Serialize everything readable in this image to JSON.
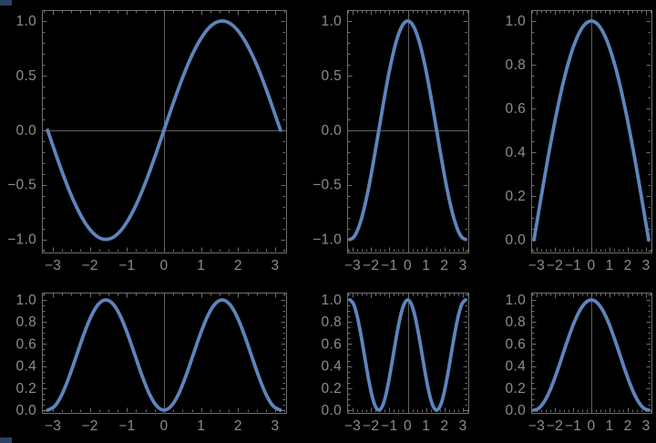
{
  "colors": {
    "background": "#000000",
    "curve": "#5e84bb",
    "frame": "#6e6e6e",
    "origin_line": "#5f5f5f",
    "tick_label": "#8d8d8d",
    "corner_artifact": "#2c4166"
  },
  "x_samples": [
    -3.142,
    -2.945,
    -2.749,
    -2.553,
    -2.356,
    -2.16,
    -1.963,
    -1.767,
    -1.571,
    -1.374,
    -1.178,
    -0.982,
    -0.785,
    -0.589,
    -0.393,
    -0.196,
    0,
    0.196,
    0.393,
    0.589,
    0.785,
    0.982,
    1.178,
    1.374,
    1.571,
    1.767,
    1.963,
    2.16,
    2.356,
    2.553,
    2.749,
    2.945,
    3.142
  ],
  "chart_data": [
    {
      "id": "sin",
      "type": "line",
      "function": "sin(x)",
      "title": "",
      "xlabel": "",
      "ylabel": "",
      "xlim": [
        -3.295,
        3.295
      ],
      "ylim": [
        -1.12,
        1.1
      ],
      "xticks": [
        -3,
        -2,
        -1,
        0,
        1,
        2,
        3
      ],
      "xtick_labels": [
        "−3",
        "−2",
        "−1",
        "0",
        "1",
        "2",
        "3"
      ],
      "yticks": [
        -1.0,
        -0.5,
        0.0,
        0.5,
        1.0
      ],
      "ytick_labels": [
        "−1.0",
        "−0.5",
        "0.0",
        "0.5",
        "1.0"
      ],
      "x_minor_step": 0.25,
      "y_minor_step": 0.1,
      "grid": false,
      "origin_vline": true,
      "origin_hline": true,
      "y": [
        0,
        -0.195,
        -0.383,
        -0.556,
        -0.707,
        -0.831,
        -0.924,
        -0.981,
        -1,
        -0.981,
        -0.924,
        -0.831,
        -0.707,
        -0.556,
        -0.383,
        -0.195,
        0,
        0.195,
        0.383,
        0.556,
        0.707,
        0.831,
        0.924,
        0.981,
        1,
        0.981,
        0.924,
        0.831,
        0.707,
        0.556,
        0.383,
        0.195,
        0
      ]
    },
    {
      "id": "cos",
      "type": "line",
      "function": "cos(x)",
      "title": "",
      "xlabel": "",
      "ylabel": "",
      "xlim": [
        -3.295,
        3.295
      ],
      "ylim": [
        -1.12,
        1.1
      ],
      "xticks": [
        -3,
        -2,
        -1,
        0,
        1,
        2,
        3
      ],
      "xtick_labels": [
        "−3",
        "−2",
        "−1",
        "0",
        "1",
        "2",
        "3"
      ],
      "yticks": [
        -1.0,
        -0.5,
        0.0,
        0.5,
        1.0
      ],
      "ytick_labels": [
        "−1.0",
        "−0.5",
        "0.0",
        "0.5",
        "1.0"
      ],
      "x_minor_step": 0.25,
      "y_minor_step": 0.1,
      "grid": false,
      "origin_vline": true,
      "origin_hline": true,
      "y": [
        -1,
        -0.981,
        -0.924,
        -0.831,
        -0.707,
        -0.556,
        -0.383,
        -0.195,
        0,
        0.195,
        0.383,
        0.556,
        0.707,
        0.831,
        0.924,
        0.981,
        1,
        0.981,
        0.924,
        0.831,
        0.707,
        0.556,
        0.383,
        0.195,
        0,
        -0.195,
        -0.383,
        -0.556,
        -0.707,
        -0.831,
        -0.924,
        -0.981,
        -1
      ]
    },
    {
      "id": "cos-half",
      "type": "line",
      "function": "cos(x/2)",
      "title": "",
      "xlabel": "",
      "ylabel": "",
      "xlim": [
        -3.295,
        3.295
      ],
      "ylim": [
        -0.058,
        1.05
      ],
      "xticks": [
        -3,
        -2,
        -1,
        0,
        1,
        2,
        3
      ],
      "xtick_labels": [
        "−3",
        "−2",
        "−1",
        "0",
        "1",
        "2",
        "3"
      ],
      "yticks": [
        0.0,
        0.2,
        0.4,
        0.6,
        0.8,
        1.0
      ],
      "ytick_labels": [
        "0.0",
        "0.2",
        "0.4",
        "0.6",
        "0.8",
        "1.0"
      ],
      "x_minor_step": 0.25,
      "y_minor_step": 0.05,
      "grid": false,
      "origin_vline": true,
      "origin_hline": false,
      "y": [
        0,
        0.098,
        0.195,
        0.29,
        0.383,
        0.471,
        0.556,
        0.634,
        0.707,
        0.773,
        0.831,
        0.882,
        0.924,
        0.957,
        0.981,
        0.995,
        1,
        0.995,
        0.981,
        0.957,
        0.924,
        0.882,
        0.831,
        0.773,
        0.707,
        0.634,
        0.556,
        0.471,
        0.383,
        0.29,
        0.195,
        0.098,
        0
      ]
    },
    {
      "id": "sin-squared",
      "type": "line",
      "function": "sin(x)^2",
      "title": "",
      "xlabel": "",
      "ylabel": "",
      "xlim": [
        -3.295,
        3.295
      ],
      "ylim": [
        -0.025,
        1.066
      ],
      "xticks": [
        -3,
        -2,
        -1,
        0,
        1,
        2,
        3
      ],
      "xtick_labels": [
        "−3",
        "−2",
        "−1",
        "0",
        "1",
        "2",
        "3"
      ],
      "yticks": [
        0.0,
        0.2,
        0.4,
        0.6,
        0.8,
        1.0
      ],
      "ytick_labels": [
        "0.0",
        "0.2",
        "0.4",
        "0.6",
        "0.8",
        "1.0"
      ],
      "x_minor_step": 0.25,
      "y_minor_step": 0.05,
      "grid": false,
      "origin_vline": true,
      "origin_hline": false,
      "y": [
        0,
        0.038,
        0.146,
        0.309,
        0.5,
        0.691,
        0.854,
        0.962,
        1,
        0.962,
        0.854,
        0.691,
        0.5,
        0.309,
        0.146,
        0.038,
        0,
        0.038,
        0.146,
        0.309,
        0.5,
        0.691,
        0.854,
        0.962,
        1,
        0.962,
        0.854,
        0.691,
        0.5,
        0.309,
        0.146,
        0.038,
        0
      ]
    },
    {
      "id": "cos-squared",
      "type": "line",
      "function": "cos(x)^2",
      "title": "",
      "xlabel": "",
      "ylabel": "",
      "xlim": [
        -3.295,
        3.295
      ],
      "ylim": [
        -0.025,
        1.066
      ],
      "xticks": [
        -3,
        -2,
        -1,
        0,
        1,
        2,
        3
      ],
      "xtick_labels": [
        "−3",
        "−2",
        "−1",
        "0",
        "1",
        "2",
        "3"
      ],
      "yticks": [
        0.0,
        0.2,
        0.4,
        0.6,
        0.8,
        1.0
      ],
      "ytick_labels": [
        "0.0",
        "0.2",
        "0.4",
        "0.6",
        "0.8",
        "1.0"
      ],
      "x_minor_step": 0.25,
      "y_minor_step": 0.05,
      "grid": false,
      "origin_vline": true,
      "origin_hline": false,
      "y": [
        1,
        0.962,
        0.854,
        0.691,
        0.5,
        0.309,
        0.146,
        0.038,
        0,
        0.038,
        0.146,
        0.309,
        0.5,
        0.691,
        0.854,
        0.962,
        1,
        0.962,
        0.854,
        0.691,
        0.5,
        0.309,
        0.146,
        0.038,
        0,
        0.038,
        0.146,
        0.309,
        0.5,
        0.691,
        0.854,
        0.962,
        1
      ]
    },
    {
      "id": "cos-half-squared",
      "type": "line",
      "function": "cos(x/2)^2",
      "title": "",
      "xlabel": "",
      "ylabel": "",
      "xlim": [
        -3.295,
        3.295
      ],
      "ylim": [
        -0.025,
        1.066
      ],
      "xticks": [
        -3,
        -2,
        -1,
        0,
        1,
        2,
        3
      ],
      "xtick_labels": [
        "−3",
        "−2",
        "−1",
        "0",
        "1",
        "2",
        "3"
      ],
      "yticks": [
        0.0,
        0.2,
        0.4,
        0.6,
        0.8,
        1.0
      ],
      "ytick_labels": [
        "0.0",
        "0.2",
        "0.4",
        "0.6",
        "0.8",
        "1.0"
      ],
      "x_minor_step": 0.25,
      "y_minor_step": 0.05,
      "grid": false,
      "origin_vline": true,
      "origin_hline": false,
      "y": [
        0,
        0.01,
        0.038,
        0.084,
        0.146,
        0.222,
        0.309,
        0.402,
        0.5,
        0.598,
        0.691,
        0.778,
        0.854,
        0.916,
        0.962,
        0.99,
        1,
        0.99,
        0.962,
        0.916,
        0.854,
        0.778,
        0.691,
        0.598,
        0.5,
        0.402,
        0.309,
        0.222,
        0.146,
        0.084,
        0.038,
        0.01,
        0
      ]
    }
  ]
}
